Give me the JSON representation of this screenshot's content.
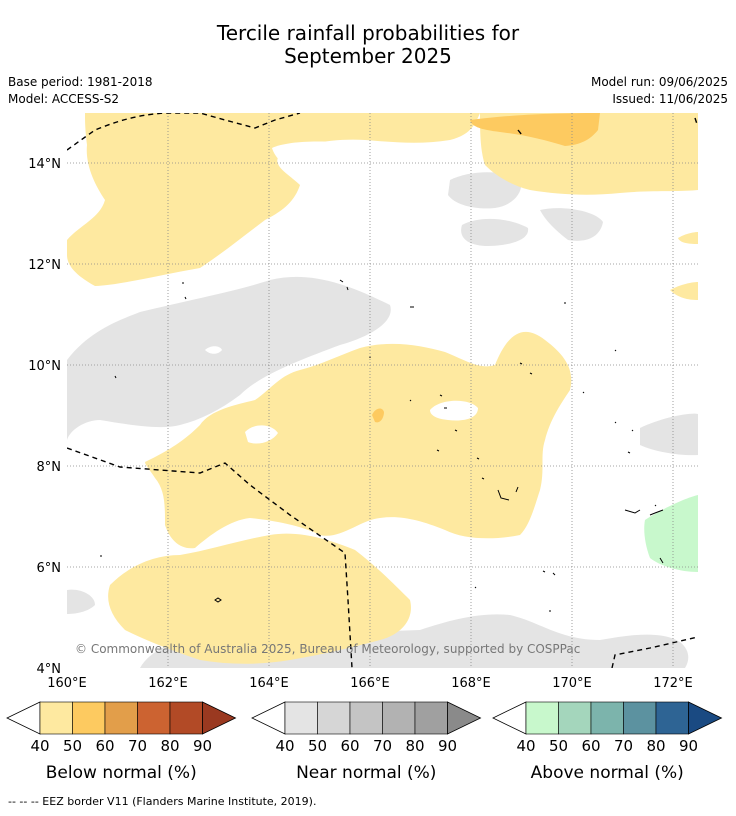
{
  "title": {
    "line1": "Tercile rainfall probabilities for",
    "line2": "September 2025"
  },
  "meta": {
    "base_period": "Base period: 1981-2018",
    "model": "Model: ACCESS-S2",
    "model_run": "Model run: 09/06/2025",
    "issued": "Issued: 11/06/2025"
  },
  "map": {
    "copyright": "© Commonwealth of Australia 2025, Bureau of Meteorology, supported by COSPPac",
    "lat_labels": [
      "14°N",
      "12°N",
      "10°N",
      "8°N",
      "6°N",
      "4°N"
    ],
    "lon_labels": [
      "160°E",
      "162°E",
      "164°E",
      "166°E",
      "168°E",
      "170°E",
      "172°E"
    ],
    "colors": {
      "below_50": "#fee9a0",
      "below_60": "#fdca60",
      "near_40": "#e4e4e4",
      "above_40": "#c8f8cc",
      "gridline": "#888888",
      "eez": "#000000"
    }
  },
  "legends": [
    {
      "label": "Below normal (%)",
      "ticks": [
        "40",
        "50",
        "60",
        "70",
        "80",
        "90"
      ],
      "colors": [
        "#fee9a0",
        "#fdca60",
        "#e29e4a",
        "#cc6331",
        "#b24a26",
        "#9a3920"
      ]
    },
    {
      "label": "Near normal (%)",
      "ticks": [
        "40",
        "50",
        "60",
        "70",
        "80",
        "90"
      ],
      "colors": [
        "#e4e4e4",
        "#d6d6d6",
        "#c4c4c4",
        "#b2b2b2",
        "#a0a0a0",
        "#8a8a8a"
      ]
    },
    {
      "label": "Above normal (%)",
      "ticks": [
        "40",
        "50",
        "60",
        "70",
        "80",
        "90"
      ],
      "colors": [
        "#c8f8cc",
        "#a4d6bc",
        "#7cb4ac",
        "#5c92a0",
        "#2e6494",
        "#1a4a82"
      ]
    }
  ],
  "footnote": "--  --  -- EEZ border V11 (Flanders Marine Institute, 2019)."
}
